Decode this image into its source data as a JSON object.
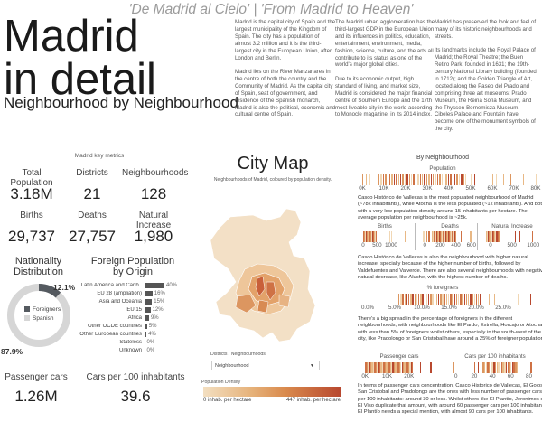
{
  "header": {
    "tagline": "'De Madrid al Cielo' | 'From Madrid to Heaven'",
    "title_line1": "Madrid",
    "title_line2": "in detail",
    "subtitle": "Neighbourhood by Neighbourhood"
  },
  "intro": {
    "col1": [
      "Madrid is the capital city of Spain and the largest municipality of the Kingdom of Spain. The city has a population of almost 3.2 million and it is the third-largest city in the European Union, after London and Berlin.",
      "Madrid lies on the River Manzanares in the centre of both the country and the Community of Madrid. As the capital city of Spain, seat of government, and residence of the Spanish monarch, Madrid is also the political, economic and cultural centre of Spain."
    ],
    "col2": [
      "The Madrid urban agglomeration has the third-largest GDP in the European Union and its influences in politics, education, entertainment, environment, media, fashion, science, culture, and the arts all contribute to its status as one of the world's major global cities.",
      "Due to its economic output, high standard of living, and market size, Madrid is considered the major financial centre of Southern Europe and the 17th most liveable city in the world according to Monocle magazine, in its 2014 index."
    ],
    "col3": [
      "Madrid has preserved the look and feel of many of its historic neighbourhoods and streets.",
      "Its landmarks include the Royal Palace of Madrid; the Royal Theatre; the Buen Retiro Park, founded in 1631; the 19th-century National Library building (founded in 1712); and the Golden Triangle of Art, located along the Paseo del Prado and comprising three art museums: Prado Museum, the Reina Sofía Museum, and the Thyssen-Bornemisza Museum. Cibeles Palace and Fountain have become one of the monument symbols of the city."
    ]
  },
  "key_metrics": {
    "section_label": "Madrid key metrics",
    "row1": [
      {
        "label": "Total Population",
        "value": "3.18M"
      },
      {
        "label": "Districts",
        "value": "21"
      },
      {
        "label": "Neighbourhoods",
        "value": "128"
      }
    ],
    "row2": [
      {
        "label": "Births",
        "value": "29,737"
      },
      {
        "label": "Deaths",
        "value": "27,757"
      },
      {
        "label": "Natural Increase",
        "value": "1,980"
      }
    ],
    "row3": [
      {
        "label": "Passenger cars",
        "value": "1.26M"
      },
      {
        "label": "Cars per 100 inhabitants",
        "value": "39.6"
      }
    ]
  },
  "nationality": {
    "title_line1": "Nationality",
    "title_line2": "Distribution",
    "foreigners_pct": "12.1%",
    "spanish_pct": "87.9%",
    "legend": [
      {
        "label": "Foreigners",
        "color": "#555a60"
      },
      {
        "label": "Spanish",
        "color": "#d6d6d6"
      }
    ]
  },
  "foreign_origin": {
    "title_line1": "Foreign Population",
    "title_line2": "by Origin",
    "rows": [
      {
        "label": "Latin America and Carib..",
        "pct": "40%",
        "value": 40
      },
      {
        "label": "EU 28 (ampliation)",
        "pct": "16%",
        "value": 16
      },
      {
        "label": "Asia and Oceania",
        "pct": "15%",
        "value": 15
      },
      {
        "label": "EU 15",
        "pct": "12%",
        "value": 12
      },
      {
        "label": "Africa",
        "pct": "9%",
        "value": 9
      },
      {
        "label": "Other OCDE countries",
        "pct": "5%",
        "value": 5
      },
      {
        "label": "Other European countries",
        "pct": "4%",
        "value": 4
      },
      {
        "label": "Stateless",
        "pct": "0%",
        "value": 0
      },
      {
        "label": "Unknown",
        "pct": "0%",
        "value": 0
      }
    ]
  },
  "city_map": {
    "title": "City Map",
    "subtitle": "Neighbourhoods of Madrid, coloured by population density.",
    "filter_label": "Districts / Neighbourhoods",
    "filter_value": "Neighbourhood",
    "legend_title": "Population Density",
    "legend_min": "0 inhab. per hectare",
    "legend_max": "447 inhab. per hectare"
  },
  "by_neighbourhood": {
    "title": "By Neighbourhood",
    "population": {
      "title": "Population",
      "axis": [
        "0K",
        "10K",
        "20K",
        "30K",
        "40K",
        "50K",
        "60K",
        "70K",
        "80K"
      ],
      "note": "Casco Histórico de Vallecas is the most populated neighbourhood of Madrid (~78k inhabitants), while Atocha is the less populated (~1k inhabitants). And both with a very low population density around 15 inhabitants per hectare. The average population per neighbourhood is ~25k."
    },
    "births": {
      "title": "Births",
      "axis": [
        "0",
        "500",
        "1000"
      ]
    },
    "deaths": {
      "title": "Deaths",
      "axis": [
        "0",
        "200",
        "400",
        "600"
      ]
    },
    "natural_increase": {
      "title": "Natural Increase",
      "axis": [
        "0",
        "500",
        "1000"
      ]
    },
    "vital_note": "Casco Histórico de Vallecas is also the neighbourhood with higher natural increase, specially because of the higher number of births, followed by Valdefuentes and Valverde. There are also several neighbourhoods with negative natural decrease, like Aluche, with the highest number of deaths.",
    "foreigners": {
      "title": "% foreigners",
      "axis": [
        "0.0%",
        "5.0%",
        "10.0%",
        "15.0%",
        "20.0%",
        "25.0%"
      ],
      "note": "There's a big spread in the percentage of foreigners in the different neighbourhoods, with neighbourhoods like El Pardo, Estrella, Horcajo or Atocha with less than 5% of foreigners whilst others, especially in the south-west of the city, like Pradolongo or San Cristobal have around a 25% of foreigner population."
    },
    "passenger_cars": {
      "title": "Passenger cars",
      "axis": [
        "0K",
        "10K",
        "20K"
      ]
    },
    "cars_per_100": {
      "title": "Cars per 100 inhabitants",
      "axis": [
        "0",
        "20",
        "40",
        "60",
        "80"
      ]
    },
    "cars_note": "In terms of passenger cars concentration, Casco Historico de Vallecas, El Goloso, San Cristobal and Pradolongo are the ones with less number of passenger cars per 100 inhabitants: around 30 or less. Whilst others like El Plantío, Jeronimos or El Viso duplicate that amount, with around 60 passenger cars per 100 inhabitants. El Plantío needs a special mention, with almost 90 cars per 100 inhabitants."
  },
  "colors": {
    "accent_dark": "#b8482f",
    "accent_mid": "#d98a4d",
    "accent_light": "#f3dfc1",
    "bar_gray": "#555a60",
    "donut_light": "#d6d6d6"
  }
}
